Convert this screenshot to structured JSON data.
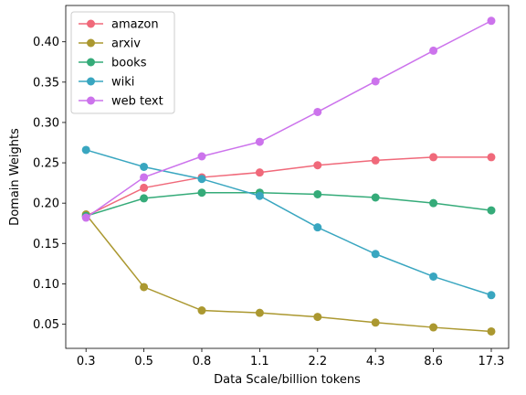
{
  "chart_data": {
    "type": "line",
    "title": "",
    "xlabel": "Data Scale/billion tokens",
    "ylabel": "Domain Weights",
    "categories": [
      "0.3",
      "0.5",
      "0.8",
      "1.1",
      "2.2",
      "4.3",
      "8.6",
      "17.3"
    ],
    "ylim": [
      0.02,
      0.445
    ],
    "yticks": [
      "0.05",
      "0.10",
      "0.15",
      "0.20",
      "0.25",
      "0.30",
      "0.35",
      "0.40"
    ],
    "grid": false,
    "legend_position": "top-left",
    "series": [
      {
        "name": "amazon",
        "color": "#f0697a",
        "values": [
          0.184,
          0.219,
          0.232,
          0.238,
          0.247,
          0.253,
          0.257,
          0.257
        ]
      },
      {
        "name": "arxiv",
        "color": "#ab9830",
        "values": [
          0.186,
          0.096,
          0.067,
          0.064,
          0.059,
          0.052,
          0.046,
          0.041
        ]
      },
      {
        "name": "books",
        "color": "#35ab79",
        "values": [
          0.184,
          0.206,
          0.213,
          0.213,
          0.211,
          0.207,
          0.2,
          0.191
        ]
      },
      {
        "name": "wiki",
        "color": "#39a6c0",
        "values": [
          0.266,
          0.245,
          0.23,
          0.209,
          0.17,
          0.137,
          0.109,
          0.086
        ]
      },
      {
        "name": "web text",
        "color": "#cc73ec",
        "values": [
          0.182,
          0.232,
          0.258,
          0.276,
          0.313,
          0.351,
          0.389,
          0.426
        ]
      }
    ]
  }
}
